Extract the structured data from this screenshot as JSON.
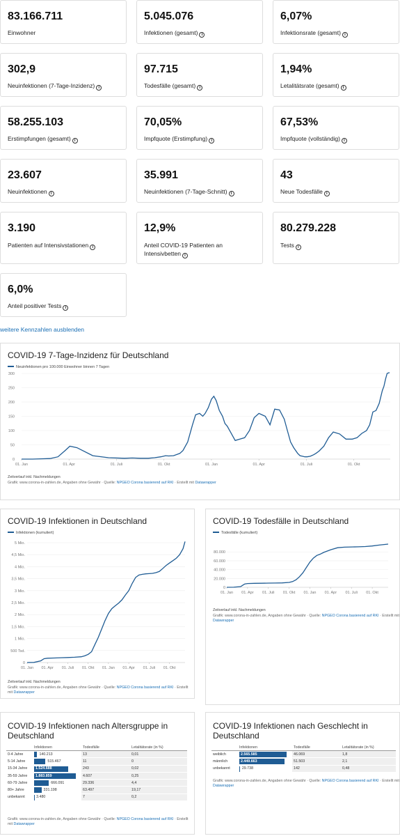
{
  "stats": [
    {
      "value": "83.166.711",
      "label": "Einwohner",
      "info": false
    },
    {
      "value": "5.045.076",
      "label": "Infektionen (gesamt)",
      "info": true
    },
    {
      "value": "6,07%",
      "label": "Infektionsrate (gesamt)",
      "info": true
    },
    {
      "value": "302,9",
      "label": "Neuinfektionen (7-Tage-Inzidenz)",
      "info": true
    },
    {
      "value": "97.715",
      "label": "Todesfälle (gesamt)",
      "info": true
    },
    {
      "value": "1,94%",
      "label": "Letalitätsrate (gesamt)",
      "info": true
    },
    {
      "value": "58.255.103",
      "label": "Erstimpfungen (gesamt)",
      "info": true
    },
    {
      "value": "70,05%",
      "label": "Impfquote (Erstimpfung)",
      "info": true
    },
    {
      "value": "67,53%",
      "label": "Impfquote (vollständig)",
      "info": true
    },
    {
      "value": "23.607",
      "label": "Neuinfektionen",
      "info": true
    },
    {
      "value": "35.991",
      "label": "Neuinfektionen (7-Tage-Schnitt)",
      "info": true
    },
    {
      "value": "43",
      "label": "Neue Todesfälle",
      "info": true
    },
    {
      "value": "3.190",
      "label": "Patienten auf Intensivstationen",
      "info": true
    },
    {
      "value": "12,9%",
      "label": "Anteil COVID-19 Patienten an Intensivbetten",
      "info": true
    },
    {
      "value": "80.279.228",
      "label": "Tests",
      "info": true
    },
    {
      "value": "6,0%",
      "label": "Anteil positiver Tests",
      "info": true
    }
  ],
  "toggle_link": "weitere Kennzahlen ausblenden",
  "footer": {
    "grafik": "Grafik: www.corona-in-zahlen.de, Angaben ohne Gewähr · Quelle:",
    "quelle_link": "NPGEO Corona basierend auf RKI",
    "erstellt": "· Erstellt mit",
    "dw_link": "Datawrapper",
    "zeitverlauf": "Zeitverlauf inkl. Nachmeldungen"
  },
  "incidence_chart": {
    "title": "COVID-19 7-Tage-Inzidenz für Deutschland",
    "legend": "Neuinfektionen pro 100.000 Einwohner binnen 7 Tagen",
    "y_ticks": [
      "300",
      "250",
      "200",
      "150",
      "100",
      "50",
      "0"
    ],
    "x_ticks": [
      "01. Jan",
      "01. Apr",
      "01. Juli",
      "01. Okt",
      "01. Jan",
      "01. Apr",
      "01. Juli",
      "01. Okt"
    ]
  },
  "infections_chart": {
    "title": "COVID-19 Infektionen in Deutschland",
    "legend": "Infektionen (kumuliert)",
    "y_ticks": [
      "5 Mio.",
      "4,5 Mio.",
      "4 Mio.",
      "3,5 Mio.",
      "3 Mio.",
      "2,5 Mio.",
      "2 Mio.",
      "1,5 Mio.",
      "1 Mio.",
      "500 Tsd.",
      "0"
    ],
    "x_ticks": [
      "01. Jan",
      "01. Apr",
      "01. Juli",
      "01. Okt",
      "01. Jan",
      "01. Apr",
      "01. Juli",
      "01. Okt"
    ]
  },
  "deaths_chart": {
    "title": "COVID-19 Todesfälle in Deutschland",
    "legend": "Todesfälle (kumuliert)",
    "y_ticks": [
      "80.000",
      "60.000",
      "40.000",
      "20.000",
      "0"
    ],
    "x_ticks": [
      "01. Jan",
      "01. Apr",
      "01. Juli",
      "01. Okt",
      "01. Jan",
      "01. Apr",
      "01. Juli",
      "01. Okt"
    ]
  },
  "age_table": {
    "title": "COVID-19 Infektionen nach Altersgruppe in Deutschland",
    "headers": [
      "",
      "Infektionen",
      "Todesfälle",
      "Letalitätsrate (in %)"
    ],
    "rows": [
      {
        "group": "0-4 Jahre",
        "inf": "140.213",
        "deaths": "13",
        "rate": "0,01",
        "frac": 0.074
      },
      {
        "group": "5-14 Jahre",
        "inf": "515.467",
        "deaths": "11",
        "rate": "0",
        "frac": 0.273
      },
      {
        "group": "15-34 Jahre",
        "inf": "1.524.688",
        "deaths": "243",
        "rate": "0,02",
        "frac": 0.809
      },
      {
        "group": "35-59 Jahre",
        "inf": "1.883.859",
        "deaths": "4.607",
        "rate": "0,25",
        "frac": 1.0
      },
      {
        "group": "60-79 Jahre",
        "inf": "666.091",
        "deaths": "29.336",
        "rate": "4,4",
        "frac": 0.354
      },
      {
        "group": "80+ Jahre",
        "inf": "331.198",
        "deaths": "63.497",
        "rate": "19,17",
        "frac": 0.176
      },
      {
        "group": "unbekannt",
        "inf": "3.480",
        "deaths": "7",
        "rate": "0,2",
        "frac": 0.002
      }
    ]
  },
  "gender_table": {
    "title": "COVID-19 Infektionen nach Geschlecht in Deutschland",
    "headers": [
      "",
      "Infektionen",
      "Todesfälle",
      "Letalitätsrate (in %)"
    ],
    "rows": [
      {
        "group": "weiblich",
        "inf": "2.565.585",
        "deaths": "46.069",
        "rate": "1,8",
        "frac": 1.0
      },
      {
        "group": "männlich",
        "inf": "2.449.663",
        "deaths": "51.503",
        "rate": "2,1",
        "frac": 0.955
      },
      {
        "group": "unbekannt",
        "inf": "29.738",
        "deaths": "142",
        "rate": "0,48",
        "frac": 0.012
      }
    ]
  },
  "chart_data": [
    {
      "type": "line",
      "title": "COVID-19 7-Tage-Inzidenz für Deutschland",
      "series": [
        {
          "name": "Neuinfektionen pro 100.000 Einwohner binnen 7 Tagen",
          "x": [
            0,
            0.7,
            1.2,
            1.8,
            2.3,
            2.75,
            3.05,
            3.5,
            4.5,
            5.5,
            6.5,
            7.0,
            7.5,
            8.0,
            8.4,
            8.8,
            9.1,
            9.3,
            9.6,
            9.9,
            10.0,
            10.2,
            10.5,
            10.8,
            11.0,
            11.25,
            11.45,
            11.6,
            11.8,
            12.0,
            12.15,
            12.3,
            12.5,
            12.7,
            12.85,
            13.0,
            13.2,
            13.5,
            13.8,
            14.1,
            14.4,
            14.7,
            15.0,
            15.4,
            15.7,
            16.0,
            16.3,
            16.6,
            16.8,
            17.0,
            17.2,
            17.45,
            17.6,
            17.75,
            17.9,
            18.05,
            18.25,
            18.45,
            18.6,
            18.8,
            19.1,
            19.4,
            19.7,
            20.1,
            20.5,
            20.9,
            21.2,
            21.5,
            21.8,
            22.0,
            22.2,
            22.4,
            22.6,
            22.8,
            22.9,
            23.0,
            23.1,
            23.25
          ],
          "y": [
            0,
            0,
            1,
            2,
            8,
            30,
            45,
            40,
            12,
            5,
            3,
            4,
            3,
            3,
            5,
            8,
            12,
            11,
            12,
            18,
            20,
            30,
            60,
            120,
            155,
            160,
            150,
            160,
            180,
            210,
            220,
            205,
            170,
            150,
            125,
            115,
            95,
            65,
            70,
            75,
            100,
            145,
            160,
            150,
            120,
            175,
            172,
            140,
            100,
            60,
            40,
            20,
            12,
            10,
            8,
            8,
            10,
            15,
            20,
            28,
            45,
            75,
            95,
            88,
            70,
            70,
            75,
            90,
            100,
            120,
            165,
            170,
            195,
            240,
            255,
            280,
            300,
            303
          ]
        }
      ],
      "ylim": [
        0,
        300
      ]
    },
    {
      "type": "line",
      "title": "COVID-19 Infektionen in Deutschland",
      "series": [
        {
          "name": "Infektionen (kumuliert)",
          "x": [
            0,
            1,
            2,
            2.5,
            3,
            4,
            5,
            6,
            7,
            8,
            8.5,
            9,
            9.5,
            10,
            10.5,
            11,
            11.5,
            12,
            12.5,
            13,
            13.5,
            14,
            14.5,
            15,
            15.5,
            16,
            16.5,
            17,
            17.5,
            18,
            18.5,
            19,
            19.5,
            20,
            20.5,
            21,
            21.5,
            22,
            22.5,
            23,
            23.3
          ],
          "y": [
            0,
            0.005,
            0.07,
            0.16,
            0.18,
            0.19,
            0.2,
            0.21,
            0.22,
            0.24,
            0.28,
            0.34,
            0.45,
            0.75,
            1.05,
            1.4,
            1.75,
            2.05,
            2.25,
            2.37,
            2.48,
            2.62,
            2.82,
            3.0,
            3.3,
            3.55,
            3.65,
            3.68,
            3.7,
            3.71,
            3.72,
            3.75,
            3.8,
            3.92,
            4.05,
            4.15,
            4.25,
            4.35,
            4.5,
            4.75,
            5.05
          ]
        }
      ],
      "ylim": [
        0,
        5
      ]
    },
    {
      "type": "line",
      "title": "COVID-19 Todesfälle in Deutschland",
      "series": [
        {
          "name": "Todesfälle (kumuliert)",
          "x": [
            0,
            1,
            2,
            2.3,
            2.6,
            3,
            4,
            5,
            6,
            7,
            8,
            9,
            9.5,
            10,
            10.5,
            11,
            11.5,
            12,
            12.5,
            13,
            13.5,
            14,
            15,
            16,
            17,
            18,
            19,
            20,
            21,
            22,
            23.3
          ],
          "y": [
            0,
            100,
            1500,
            4500,
            7500,
            8500,
            9000,
            9200,
            9400,
            9600,
            10000,
            11000,
            13000,
            17000,
            24000,
            33000,
            45000,
            57000,
            66000,
            72000,
            75000,
            79000,
            85000,
            89500,
            90800,
            91300,
            91600,
            92200,
            93500,
            95500,
            97715
          ]
        }
      ],
      "ylim": [
        0,
        97715
      ]
    },
    {
      "type": "table",
      "title": "COVID-19 Infektionen nach Altersgruppe in Deutschland",
      "columns": [
        "",
        "Infektionen",
        "Todesfälle",
        "Letalitätsrate (in %)"
      ],
      "rows": [
        [
          "0-4 Jahre",
          "140.213",
          "13",
          "0,01"
        ],
        [
          "5-14 Jahre",
          "515.467",
          "11",
          "0"
        ],
        [
          "15-34 Jahre",
          "1.524.688",
          "243",
          "0,02"
        ],
        [
          "35-59 Jahre",
          "1.883.859",
          "4.607",
          "0,25"
        ],
        [
          "60-79 Jahre",
          "666.091",
          "29.336",
          "4,4"
        ],
        [
          "80+ Jahre",
          "331.198",
          "63.497",
          "19,17"
        ],
        [
          "unbekannt",
          "3.480",
          "7",
          "0,2"
        ]
      ]
    },
    {
      "type": "table",
      "title": "COVID-19 Infektionen nach Geschlecht in Deutschland",
      "columns": [
        "",
        "Infektionen",
        "Todesfälle",
        "Letalitätsrate (in %)"
      ],
      "rows": [
        [
          "weiblich",
          "2.565.585",
          "46.069",
          "1,8"
        ],
        [
          "männlich",
          "2.449.663",
          "51.503",
          "2,1"
        ],
        [
          "unbekannt",
          "29.738",
          "142",
          "0,48"
        ]
      ]
    }
  ]
}
